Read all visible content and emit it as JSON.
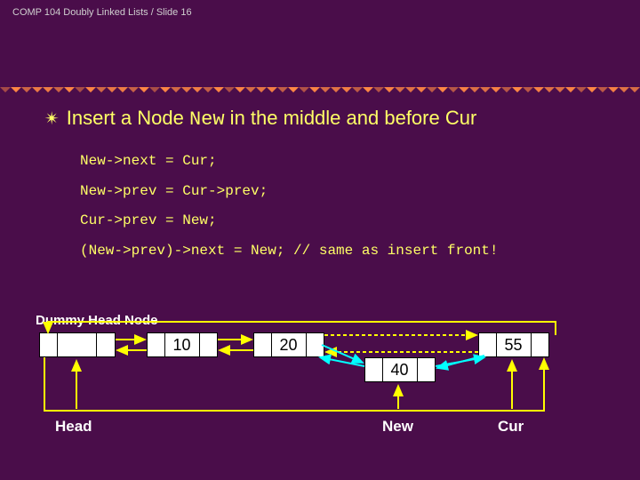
{
  "header": {
    "breadcrumb": "COMP 104 Doubly Linked Lists / Slide 16"
  },
  "title": {
    "prefix": "Insert a Node ",
    "mono": "New",
    "suffix": " in the middle and before Cur"
  },
  "code": {
    "l1": "New->next = Cur;",
    "l2": "New->prev = Cur->prev;",
    "l3": "Cur->prev = New;",
    "l4": "(New->prev)->next = New; // same as insert front!"
  },
  "diagram": {
    "dummy_label": "Dummy Head Node",
    "n1": "10",
    "n2": "20",
    "n3": "40",
    "n4": "55",
    "head_label": "Head",
    "new_label": "New",
    "cur_label": "Cur"
  },
  "style": {
    "bg": "#4a0d4a",
    "accent": "#ffff66",
    "text_light": "#ffffff",
    "node_bg": "#ffffff",
    "arrow_yellow": "#ffff00",
    "arrow_cyan": "#00ffff",
    "sep_color": "#ff8844"
  }
}
